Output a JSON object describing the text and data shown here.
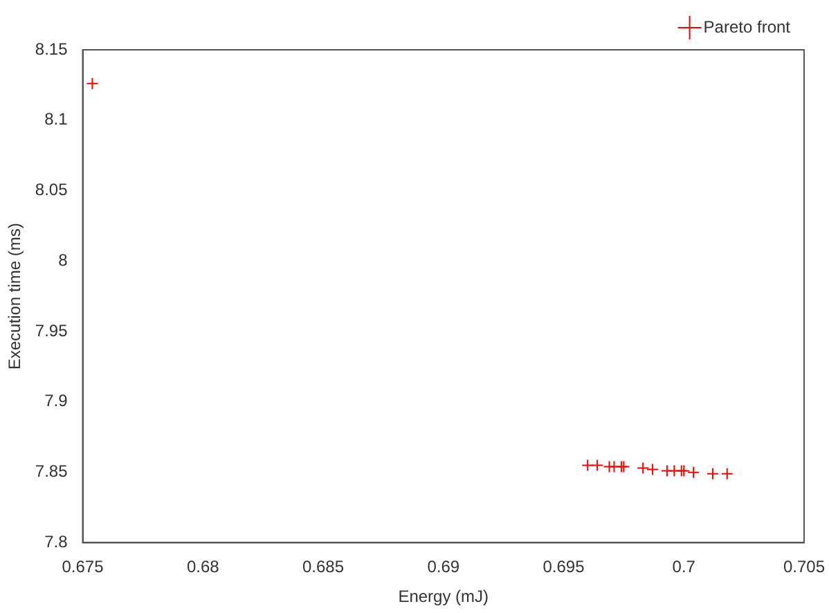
{
  "chart_data": {
    "type": "scatter",
    "xlabel": "Energy (mJ)",
    "ylabel": "Execution time (ms)",
    "xlim": [
      0.675,
      0.705
    ],
    "xticks": [
      0.675,
      0.68,
      0.685,
      0.69,
      0.695,
      0.7,
      0.705
    ],
    "ylim": [
      7.8,
      8.15
    ],
    "yticks": [
      7.8,
      7.85,
      7.9,
      7.95,
      8,
      8.05,
      8.1,
      8.15
    ],
    "grid": false,
    "legend": "top right",
    "marker": "cross",
    "series": [
      {
        "name": "Pareto front",
        "color": "#ff0000",
        "x": [
          0.6754,
          0.696,
          0.6964,
          0.6969,
          0.6971,
          0.6974,
          0.6975,
          0.6983,
          0.6987,
          0.6993,
          0.6996,
          0.6999,
          0.7,
          0.7004,
          0.7012,
          0.7018
        ],
        "values": [
          8.126,
          7.855,
          7.855,
          7.854,
          7.854,
          7.854,
          7.854,
          7.853,
          7.852,
          7.851,
          7.851,
          7.851,
          7.851,
          7.85,
          7.849,
          7.849
        ]
      }
    ]
  }
}
